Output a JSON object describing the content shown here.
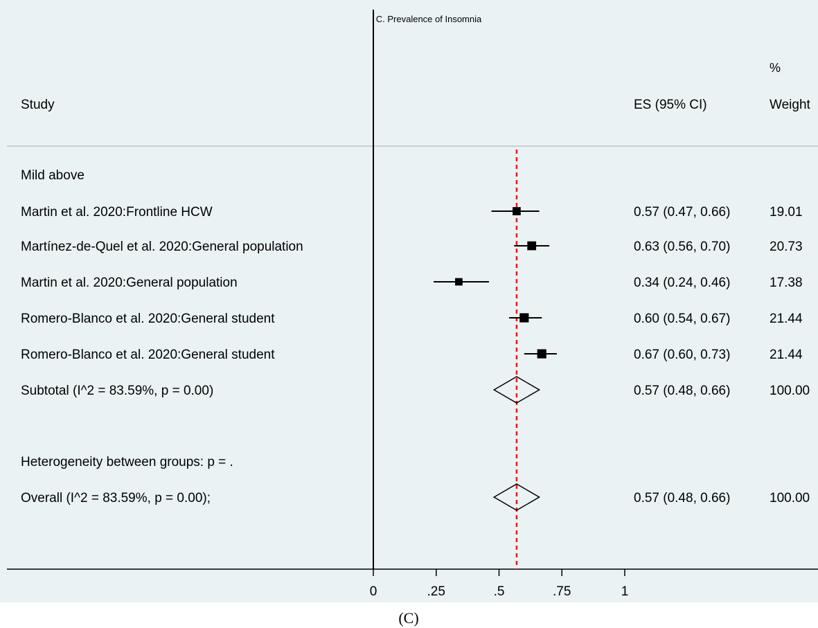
{
  "chart_data": {
    "type": "forest",
    "title": "C. Prevalence of Insomnia",
    "columns": {
      "study": "Study",
      "es": "ES (95% CI)",
      "weight_line1": "%",
      "weight_line2": "Weight"
    },
    "group_label": "Mild above",
    "studies": [
      {
        "label": "Martin et al. 2020:Frontline HCW",
        "es": 0.57,
        "lo": 0.47,
        "hi": 0.66,
        "es_text": "0.57 (0.47, 0.66)",
        "weight": "19.01",
        "weight_value": 19.01
      },
      {
        "label": "Martínez-de-Quel et al. 2020:General population",
        "es": 0.63,
        "lo": 0.56,
        "hi": 0.7,
        "es_text": "0.63 (0.56, 0.70)",
        "weight": "20.73",
        "weight_value": 20.73
      },
      {
        "label": "Martin et al. 2020:General population",
        "es": 0.34,
        "lo": 0.24,
        "hi": 0.46,
        "es_text": "0.34 (0.24, 0.46)",
        "weight": "17.38",
        "weight_value": 17.38
      },
      {
        "label": "Romero-Blanco et al. 2020:General student",
        "es": 0.6,
        "lo": 0.54,
        "hi": 0.67,
        "es_text": "0.60 (0.54, 0.67)",
        "weight": "21.44",
        "weight_value": 21.44
      },
      {
        "label": "Romero-Blanco et al. 2020:General student",
        "es": 0.67,
        "lo": 0.6,
        "hi": 0.73,
        "es_text": "0.67 (0.60, 0.73)",
        "weight": "21.44",
        "weight_value": 21.44
      }
    ],
    "subtotal": {
      "label": "Subtotal  (I^2 = 83.59%, p = 0.00)",
      "es": 0.57,
      "lo": 0.48,
      "hi": 0.66,
      "es_text": "0.57 (0.48, 0.66)",
      "weight": "100.00"
    },
    "heterogeneity": "Heterogeneity between groups: p = .",
    "overall": {
      "label": "Overall  (I^2 = 83.59%, p = 0.00);",
      "es": 0.57,
      "lo": 0.48,
      "hi": 0.66,
      "es_text": "0.57 (0.48, 0.66)",
      "weight": "100.00"
    },
    "reference_line": 0.57,
    "null_line": 0,
    "x_ticks": [
      0,
      0.25,
      0.5,
      0.75,
      1
    ],
    "x_tick_labels": [
      "0",
      ".25",
      ".5",
      ".75",
      "1"
    ],
    "xlim": [
      0,
      1
    ]
  },
  "caption": "(C)",
  "colors": {
    "background": "#eaf2f3",
    "reference_line": "#e8191f",
    "marker": "#000000",
    "rule": "#c0c4c6"
  }
}
